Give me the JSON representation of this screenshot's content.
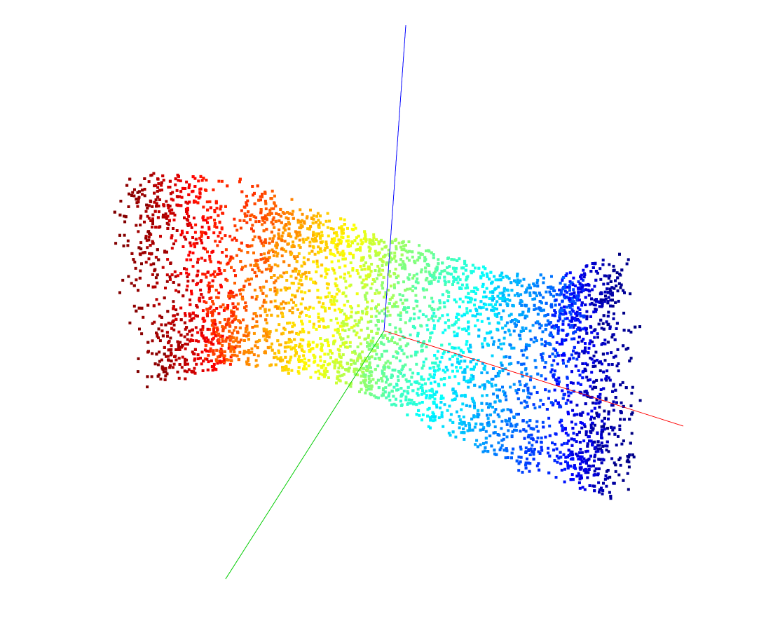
{
  "chart_data": {
    "type": "scatter",
    "view": "3d",
    "title": "",
    "xlabel": "",
    "ylabel": "",
    "zlabel": "",
    "axes": {
      "x_color": "#ff0000",
      "y_color": "#00cc00",
      "z_color": "#0000ff"
    },
    "colormap": "jet",
    "color_by": "x",
    "point_cloud_shape": "elongated curved tube",
    "x_range": [
      -2.5,
      2.5
    ],
    "y_range": [
      -0.7,
      0.7
    ],
    "z_range": [
      -0.6,
      0.6
    ],
    "approx_point_count": 6000,
    "grid": false,
    "legend": "none"
  }
}
